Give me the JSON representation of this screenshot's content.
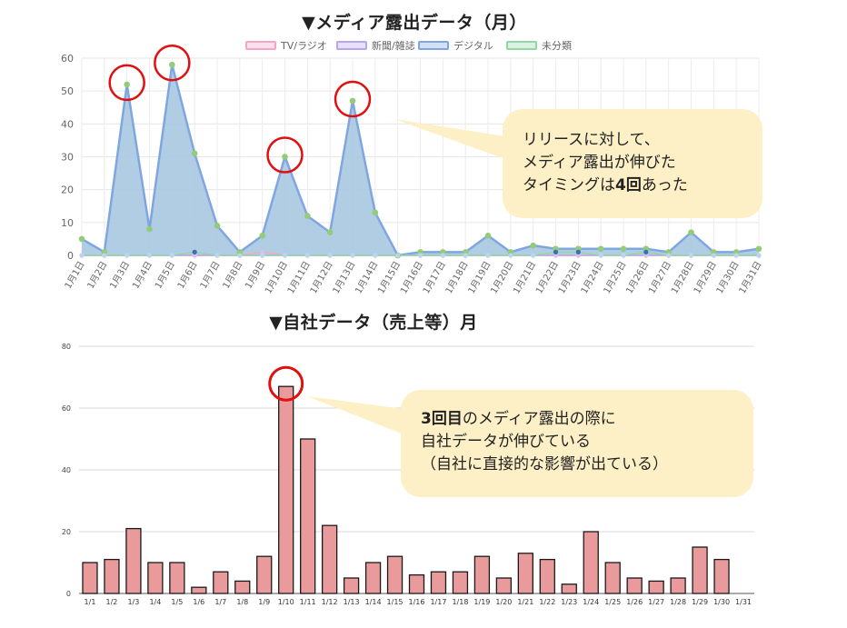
{
  "chart_data": [
    {
      "type": "area",
      "title": "▼メディア露出データ（月）",
      "categories": [
        "1月1日",
        "1月2日",
        "1月3日",
        "1月4日",
        "1月5日",
        "1月6日",
        "1月7日",
        "1月8日",
        "1月9日",
        "1月10日",
        "1月11日",
        "1月12日",
        "1月13日",
        "1月14日",
        "1月15日",
        "1月16日",
        "1月17日",
        "1月18日",
        "1月19日",
        "1月20日",
        "1月21日",
        "1月22日",
        "1月23日",
        "1月24日",
        "1月25日",
        "1月26日",
        "1月27日",
        "1月28日",
        "1月29日",
        "1月30日",
        "1月31日"
      ],
      "ylim": [
        0,
        60
      ],
      "yticks": [
        0,
        10,
        20,
        30,
        40,
        50,
        60
      ],
      "legend_position": "top",
      "grid": true,
      "series": [
        {
          "name": "TV/ラジオ",
          "color": "#f4a6c4",
          "values": [
            0,
            0,
            0,
            0,
            0,
            0,
            0,
            0,
            1,
            0,
            0,
            0,
            0,
            0,
            0,
            0,
            0,
            0,
            0,
            0,
            0,
            0,
            0,
            0,
            0,
            0,
            0,
            0,
            0,
            0,
            0
          ]
        },
        {
          "name": "新聞/雑誌",
          "color": "#b8a6ec",
          "values": [
            0,
            0,
            0,
            0,
            0,
            0,
            0,
            0,
            0,
            0,
            0,
            0,
            0,
            0,
            0,
            0,
            0,
            0,
            0,
            0,
            0,
            0,
            0,
            0,
            0,
            0,
            0,
            0,
            0,
            0,
            0
          ]
        },
        {
          "name": "デジタル",
          "color": "#7fa6e0",
          "values": [
            5,
            1,
            52,
            8,
            58,
            31,
            9,
            1,
            6,
            30,
            12,
            7,
            47,
            13,
            0,
            1,
            1,
            1,
            6,
            1,
            3,
            2,
            2,
            2,
            2,
            2,
            1,
            7,
            1,
            1,
            2
          ]
        },
        {
          "name": "未分類",
          "color": "#92d6a6",
          "values": [
            0,
            0,
            0,
            0,
            0,
            1,
            0,
            0,
            0,
            0,
            0,
            0,
            0,
            0,
            0,
            0,
            0,
            0,
            0,
            0,
            0,
            1,
            1,
            0,
            0,
            1,
            0,
            0,
            0,
            0,
            0
          ]
        }
      ],
      "highlighted_days": [
        "1月3日",
        "1月5日",
        "1月10日",
        "1月13日"
      ]
    },
    {
      "type": "bar",
      "title": "▼自社データ（売上等）月",
      "categories": [
        "1/1",
        "1/2",
        "1/3",
        "1/4",
        "1/5",
        "1/6",
        "1/7",
        "1/8",
        "1/9",
        "1/10",
        "1/11",
        "1/12",
        "1/13",
        "1/14",
        "1/15",
        "1/16",
        "1/17",
        "1/18",
        "1/19",
        "1/20",
        "1/21",
        "1/22",
        "1/23",
        "1/24",
        "1/25",
        "1/26",
        "1/27",
        "1/28",
        "1/29",
        "1/30",
        "1/31"
      ],
      "values": [
        10,
        11,
        21,
        10,
        10,
        2,
        7,
        4,
        12,
        67,
        50,
        22,
        5,
        10,
        12,
        6,
        7,
        7,
        12,
        5,
        13,
        11,
        3,
        20,
        10,
        5,
        4,
        5,
        15,
        11,
        0
      ],
      "ylim": [
        0,
        80
      ],
      "yticks": [
        0,
        20,
        40,
        60,
        80
      ],
      "bar_color": "#e99a9a",
      "grid": true,
      "highlighted_days": [
        "1/10"
      ]
    }
  ],
  "callouts": {
    "top": {
      "line1": "リリースに対して、",
      "line2": "メディア露出が伸びた",
      "line3_pre": "タイミングは",
      "line3_bold": "4回",
      "line3_post": "あった"
    },
    "bottom": {
      "line1_bold": "3回目",
      "line1_post": "のメディア露出の際に",
      "line2": "自社データが伸びている",
      "line3": "（自社に直接的な影響が出ている）"
    }
  },
  "colors": {
    "highlight_circle": "#e01010",
    "callout_bg": "#fdf0c6",
    "area_fill": "#a8c8e0"
  }
}
